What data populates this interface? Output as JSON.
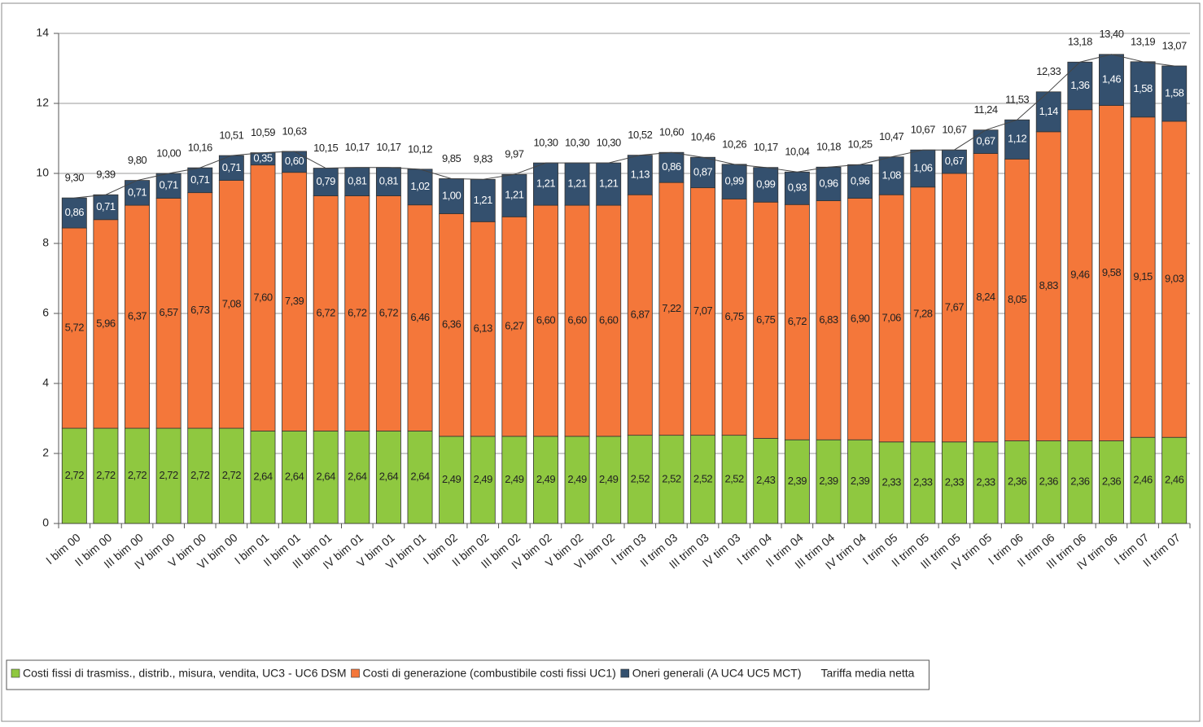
{
  "chart_data": {
    "type": "bar",
    "stacked": true,
    "categories": [
      "I bim 00",
      "II bim 00",
      "III bim 00",
      "IV bim 00",
      "V bim 00",
      "VI bim 00",
      "I bim 01",
      "II bim 01",
      "III bim 01",
      "IV bim 01",
      "V bim 01",
      "VI bim 01",
      "I bim 02",
      "II bim 02",
      "III bim 02",
      "IV bim 02",
      "V bim 02",
      "VI bim 02",
      "I trim 03",
      "II trim 03",
      "III trim 03",
      "IV tim 03",
      "I trim 04",
      "II trim 04",
      "III trim 04",
      "IV trim 04",
      "I trim 05",
      "II trim 05",
      "III trim 05",
      "IV trim 05",
      "I trim 06",
      "II trim 06",
      "III trim 06",
      "IV trim 06",
      "I trim 07",
      "II trim 07"
    ],
    "series": [
      {
        "name": "Costi fissi di trasmiss., distrib., misura, vendita, UC3 - UC6 DSM",
        "color": "#8fc840",
        "values": [
          2.72,
          2.72,
          2.72,
          2.72,
          2.72,
          2.72,
          2.64,
          2.64,
          2.64,
          2.64,
          2.64,
          2.64,
          2.49,
          2.49,
          2.49,
          2.49,
          2.49,
          2.49,
          2.52,
          2.52,
          2.52,
          2.52,
          2.43,
          2.39,
          2.39,
          2.39,
          2.33,
          2.33,
          2.33,
          2.33,
          2.36,
          2.36,
          2.36,
          2.36,
          2.46,
          2.46
        ],
        "value_labels": [
          "2,72",
          "2,72",
          "2,72",
          "2,72",
          "2,72",
          "2,72",
          "2,64",
          "2,64",
          "2,64",
          "2,64",
          "2,64",
          "2,64",
          "2,49",
          "2,49",
          "2,49",
          "2,49",
          "2,49",
          "2,49",
          "2,52",
          "2,52",
          "2,52",
          "2,52",
          "2,43",
          "2,39",
          "2,39",
          "2,39",
          "2,33",
          "2,33",
          "2,33",
          "2,33",
          "2,36",
          "2,36",
          "2,36",
          "2,36",
          "2,46",
          "2,46"
        ]
      },
      {
        "name": "Costi di generazione (combustibile costi fissi UC1)",
        "color": "#f4773a",
        "values": [
          5.72,
          5.96,
          6.37,
          6.57,
          6.73,
          7.08,
          7.6,
          7.39,
          6.72,
          6.72,
          6.72,
          6.46,
          6.36,
          6.13,
          6.27,
          6.6,
          6.6,
          6.6,
          6.87,
          7.22,
          7.07,
          6.75,
          6.75,
          6.72,
          6.83,
          6.9,
          7.06,
          7.28,
          7.67,
          8.24,
          8.05,
          8.83,
          9.46,
          9.58,
          9.15,
          9.03
        ],
        "value_labels": [
          "5,72",
          "5,96",
          "6,37",
          "6,57",
          "6,73",
          "7,08",
          "7,60",
          "7,39",
          "6,72",
          "6,72",
          "6,72",
          "6,46",
          "6,36",
          "6,13",
          "6,27",
          "6,60",
          "6,60",
          "6,60",
          "6,87",
          "7,22",
          "7,07",
          "6,75",
          "6,75",
          "6,72",
          "6,83",
          "6,90",
          "7,06",
          "7,28",
          "7,67",
          "8,24",
          "8,05",
          "8,83",
          "9,46",
          "9,58",
          "9,15",
          "9,03"
        ]
      },
      {
        "name": "Oneri generali (A UC4 UC5 MCT)",
        "color": "#34506e",
        "values": [
          0.86,
          0.71,
          0.71,
          0.71,
          0.71,
          0.71,
          0.35,
          0.6,
          0.79,
          0.81,
          0.81,
          1.02,
          1.0,
          1.21,
          1.21,
          1.21,
          1.21,
          1.21,
          1.13,
          0.86,
          0.87,
          0.99,
          0.99,
          0.93,
          0.96,
          0.96,
          1.08,
          1.06,
          0.67,
          0.67,
          1.12,
          1.14,
          1.36,
          1.46,
          1.58,
          1.58
        ],
        "value_labels": [
          "0,86",
          "0,71",
          "0,71",
          "0,71",
          "0,71",
          "0,71",
          "0,35",
          "0,60",
          "0,79",
          "0,81",
          "0,81",
          "1,02",
          "1,00",
          "1,21",
          "1,21",
          "1,21",
          "1,21",
          "1,21",
          "1,13",
          "0,86",
          "0,87",
          "0,99",
          "0,99",
          "0,93",
          "0,96",
          "0,96",
          "1,08",
          "1,06",
          "0,67",
          "0,67",
          "1,12",
          "1,14",
          "1,36",
          "1,46",
          "1,58",
          "1,58"
        ]
      },
      {
        "name": "Tariffa media netta",
        "type": "line",
        "color": "#444444",
        "values": [
          9.3,
          9.39,
          9.8,
          10.0,
          10.16,
          10.51,
          10.59,
          10.63,
          10.15,
          10.17,
          10.17,
          10.12,
          9.85,
          9.83,
          9.97,
          10.3,
          10.3,
          10.3,
          10.52,
          10.6,
          10.46,
          10.26,
          10.17,
          10.04,
          10.18,
          10.25,
          10.47,
          10.67,
          10.67,
          11.24,
          11.53,
          12.33,
          13.18,
          13.4,
          13.19,
          13.07
        ],
        "value_labels": [
          "9,30",
          "9,39",
          "9,80",
          "10,00",
          "10,16",
          "10,51",
          "10,59",
          "10,63",
          "10,15",
          "10,17",
          "10,17",
          "10,12",
          "9,85",
          "9,83",
          "9,97",
          "10,30",
          "10,30",
          "10,30",
          "10,52",
          "10,60",
          "10,46",
          "10,26",
          "10,17",
          "10,04",
          "10,18",
          "10,25",
          "10,47",
          "10,67",
          "10,67",
          "11,24",
          "11,53",
          "12,33",
          "13,18",
          "13,40",
          "13,19",
          "13,07"
        ]
      }
    ],
    "ylim": [
      0,
      14
    ],
    "yticks": [
      0,
      2,
      4,
      6,
      8,
      10,
      12,
      14
    ],
    "legend": "bottom-left"
  }
}
